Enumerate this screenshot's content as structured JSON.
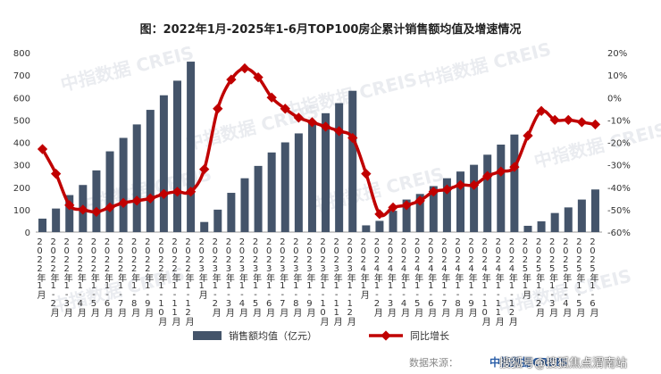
{
  "chart_data": {
    "type": "bar",
    "title": "图：2022年1月-2025年1-6月TOP100房企累计销售额均值及增速情况",
    "categories": [
      "2022年1月",
      "2022年1-2月",
      "2022年1-3月",
      "2022年1-4月",
      "2022年1-5月",
      "2022年1-6月",
      "2022年1-7月",
      "2022年1-8月",
      "2022年1-9月",
      "2022年1-10月",
      "2022年1-11月",
      "2022年1-12月",
      "2023年1月",
      "2023年1-2月",
      "2023年1-3月",
      "2023年1-4月",
      "2023年1-5月",
      "2023年1-6月",
      "2023年1-7月",
      "2023年1-8月",
      "2023年1-9月",
      "2023年1-10月",
      "2023年1-11月",
      "2023年1-12月",
      "2024年1月",
      "2024年1-2月",
      "2024年1-3月",
      "2024年1-4月",
      "2024年1-5月",
      "2024年1-6月",
      "2024年1-7月",
      "2024年1-8月",
      "2024年1-9月",
      "2024年1-10月",
      "2024年1-11月",
      "2024年1-12月",
      "2025年1月",
      "2025年1-2月",
      "2025年1-3月",
      "2025年1-4月",
      "2025年1-5月",
      "2025年1-6月"
    ],
    "series": [
      {
        "name": "销售额均值（亿元）",
        "type": "bar",
        "axis": "left",
        "color": "#44546a",
        "values": [
          60,
          105,
          165,
          210,
          275,
          360,
          420,
          480,
          545,
          610,
          675,
          760,
          45,
          100,
          175,
          240,
          295,
          355,
          400,
          440,
          495,
          530,
          575,
          630,
          30,
          50,
          95,
          145,
          170,
          205,
          240,
          270,
          300,
          345,
          390,
          435,
          28,
          48,
          85,
          110,
          145,
          190
        ]
      },
      {
        "name": "同比增长",
        "type": "line",
        "axis": "right",
        "color": "#c00000",
        "values": [
          -23,
          -34,
          -48,
          -50,
          -51,
          -49,
          -47,
          -46,
          -45,
          -43,
          -42,
          -42,
          -32,
          -5,
          8,
          13,
          9,
          0,
          -5,
          -9,
          -11,
          -13,
          -15,
          -18,
          -34,
          -52,
          -49,
          -48,
          -46,
          -42,
          -41,
          -39,
          -39,
          -35,
          -33,
          -31,
          -17,
          -6,
          -10,
          -10,
          -11,
          -12
        ]
      }
    ],
    "y_left": {
      "min": 0,
      "max": 800,
      "step": 100
    },
    "y_right": {
      "min": -60,
      "max": 20,
      "step": 10,
      "unit": "%"
    },
    "legend": [
      "销售额均值（亿元）",
      "同比增长"
    ],
    "legend_position": "bottom",
    "watermark": "中指数据 CREIS",
    "grid": false
  },
  "footer": {
    "source": "数据来源：",
    "source_brand": "中指数据CREIS",
    "credit": "搜狐号@搜狐焦点渭南站"
  }
}
